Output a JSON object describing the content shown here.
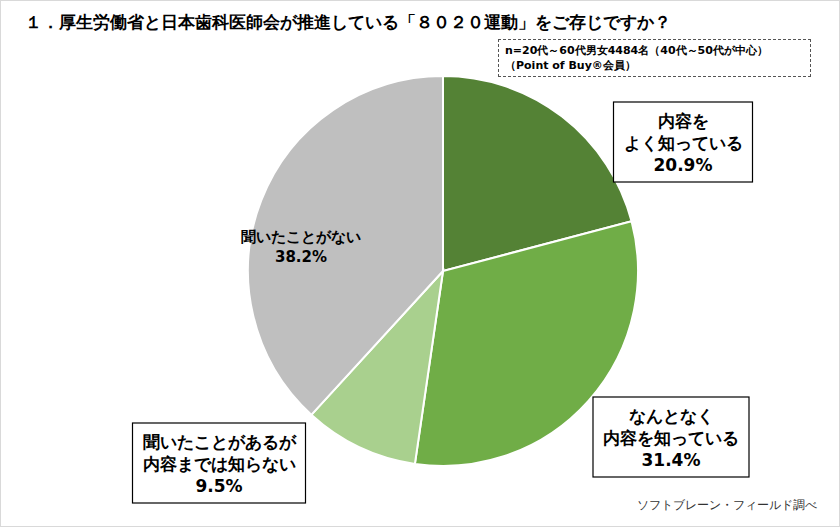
{
  "chart_data": {
    "type": "pie",
    "title": "１．厚生労働省と日本歯科医師会が推進している「８０２０運動」をご存じですか？",
    "subtitle": "n=20代～60代男女4484名（40代～50代が中心）\n（Point of Buy®会員）",
    "annotations": [
      "ソフトブレーン・フィールド調べ"
    ],
    "categories": [
      "内容を\nよく知っている",
      "なんとなく\n内容を知っている",
      "聞いたことがあるが\n内容までは知らない",
      "聞いたことがない"
    ],
    "values": [
      20.9,
      31.4,
      9.5,
      38.2
    ],
    "value_labels": [
      "20.9%",
      "31.4%",
      "9.5%",
      "38.2%"
    ],
    "colors": [
      "#548235",
      "#70AD47",
      "#A9D08E",
      "#BFBFBF"
    ],
    "data_labels": true
  }
}
